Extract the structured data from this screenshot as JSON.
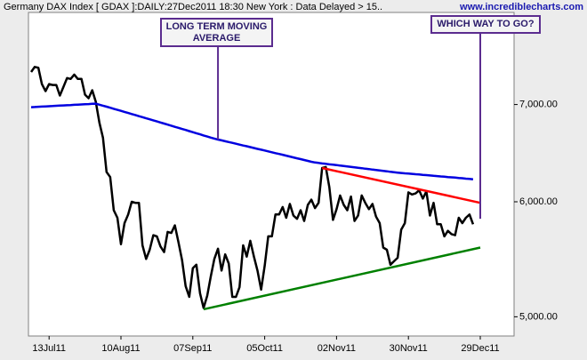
{
  "chart_data": {
    "type": "line",
    "title": "Germany DAX Index [ GDAX ]:DAILY:27Dec2011 18:30 New York : Data Delayed > 15..",
    "watermark": "www.incrediblecharts.com",
    "categories": [
      null,
      null,
      null,
      null,
      null,
      "13Jul11",
      null,
      null,
      null,
      null,
      null,
      null,
      null,
      null,
      null,
      null,
      null,
      null,
      null,
      null,
      null,
      null,
      null,
      null,
      null,
      "10Aug11",
      null,
      null,
      null,
      null,
      null,
      null,
      null,
      null,
      null,
      null,
      null,
      null,
      null,
      null,
      null,
      null,
      null,
      null,
      null,
      "07Sep11",
      null,
      null,
      null,
      null,
      null,
      null,
      null,
      null,
      null,
      null,
      null,
      null,
      null,
      null,
      null,
      null,
      null,
      null,
      null,
      "05Oct11",
      null,
      null,
      null,
      null,
      null,
      null,
      null,
      null,
      null,
      null,
      null,
      null,
      null,
      null,
      null,
      null,
      null,
      null,
      null,
      "02Nov11",
      null,
      null,
      null,
      null,
      null,
      null,
      null,
      null,
      null,
      null,
      null,
      null,
      null,
      null,
      null,
      null,
      null,
      null,
      null,
      "30Nov11",
      null,
      null,
      null,
      null,
      null,
      null,
      null,
      null,
      null,
      null,
      null,
      null,
      null,
      null,
      null,
      null,
      null,
      null,
      null,
      "29Dec11"
    ],
    "series": [
      {
        "color": "#000000",
        "values": [
          7370,
          7430,
          7420,
          7230,
          7150,
          7230,
          7220,
          7220,
          7100,
          7200,
          7300,
          7290,
          7340,
          7290,
          7290,
          7110,
          7070,
          7160,
          7030,
          6800,
          6640,
          6290,
          6240,
          5920,
          5850,
          5610,
          5800,
          5880,
          6000,
          5990,
          5990,
          5600,
          5480,
          5560,
          5690,
          5680,
          5590,
          5540,
          5720,
          5710,
          5780,
          5630,
          5470,
          5250,
          5160,
          5400,
          5430,
          5190,
          5070,
          5170,
          5330,
          5480,
          5570,
          5380,
          5520,
          5440,
          5160,
          5160,
          5240,
          5600,
          5500,
          5640,
          5500,
          5380,
          5220,
          5420,
          5680,
          5680,
          5880,
          5880,
          5950,
          5850,
          5980,
          5870,
          5840,
          5920,
          5820,
          5970,
          6020,
          5940,
          5990,
          6330,
          6340,
          6140,
          5830,
          5930,
          6060,
          5970,
          5920,
          6050,
          5820,
          5870,
          6060,
          5990,
          5930,
          5980,
          5860,
          5800,
          5580,
          5560,
          5430,
          5460,
          5490,
          5740,
          5800,
          6090,
          6070,
          6080,
          6110,
          6030,
          6100,
          5870,
          5990,
          5790,
          5790,
          5680,
          5730,
          5700,
          5690,
          5850,
          5800,
          5850,
          5880,
          5790,
          null,
          null
        ]
      },
      {
        "color": "#0000e0",
        "values": [
          6970,
          6972,
          6975,
          6977,
          6979,
          6981,
          6983,
          6986,
          6988,
          6990,
          6992,
          6994,
          6997,
          6999,
          7001,
          7003,
          7005,
          7008,
          7010,
          6998,
          6987,
          6976,
          6964,
          6953,
          6941,
          6930,
          6918,
          6907,
          6895,
          6884,
          6872,
          6861,
          6849,
          6838,
          6826,
          6815,
          6803,
          6792,
          6780,
          6769,
          6757,
          6746,
          6734,
          6723,
          6711,
          6700,
          6688,
          6677,
          6665,
          6654,
          6642,
          6632,
          6622,
          6613,
          6604,
          6596,
          6587,
          6578,
          6569,
          6560,
          6552,
          6543,
          6534,
          6525,
          6516,
          6508,
          6499,
          6490,
          6481,
          6472,
          6464,
          6455,
          6446,
          6437,
          6428,
          6420,
          6411,
          6402,
          6393,
          6385,
          6381,
          6376,
          6372,
          6367,
          6363,
          6359,
          6354,
          6350,
          6345,
          6341,
          6336,
          6332,
          6328,
          6323,
          6319,
          6314,
          6310,
          6306,
          6301,
          6297,
          6292,
          6288,
          6284,
          6280,
          6277,
          6274,
          6271,
          6268,
          6265,
          6262,
          6259,
          6255,
          6252,
          6249,
          6246,
          6243,
          6240,
          6237,
          6234,
          6231,
          6228,
          6224,
          6221,
          6218,
          null,
          null
        ]
      }
    ],
    "trend_lines": [
      {
        "color": "#ff0000",
        "x": [
          81,
          125
        ],
        "values": [
          6330,
          5990
        ]
      },
      {
        "color": "#008000",
        "x": [
          48,
          125
        ],
        "values": [
          5060,
          5580
        ]
      }
    ],
    "annotations": [
      {
        "text": "LONG TERM MOVING AVERAGE",
        "x": 52,
        "value": 6622
      },
      {
        "text": "WHICH WAY TO GO?",
        "x": 125,
        "value": 5840
      }
    ],
    "log_scale": true,
    "ylim": [
      4850,
      8100
    ],
    "yticks": [
      {
        "value": 5000,
        "label": "5,000.00"
      },
      {
        "value": 6000,
        "label": "6,000.00"
      },
      {
        "value": 7000,
        "label": "7,000.00"
      }
    ]
  }
}
